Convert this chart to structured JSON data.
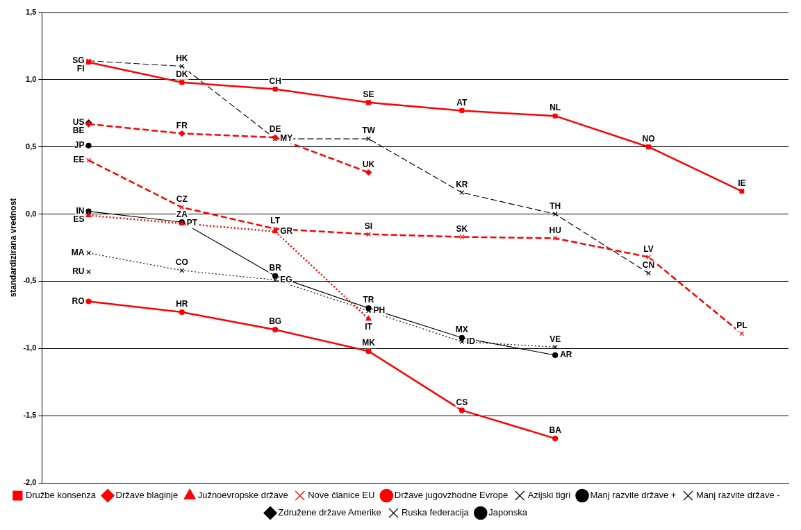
{
  "chart_data": {
    "type": "line",
    "categories": [
      null,
      null,
      null,
      null,
      null,
      null,
      null,
      null
    ],
    "ylabel": "standardizirana vrednost",
    "ylim": [
      -2,
      1.5
    ],
    "yticks": [
      {
        "value": -2,
        "label": "-2,0"
      },
      {
        "value": -1.5,
        "label": "-1,5"
      },
      {
        "value": -1,
        "label": "-1,0"
      },
      {
        "value": -0.5,
        "label": "-0,5"
      },
      {
        "value": 0,
        "label": "0,0"
      },
      {
        "value": 0.5,
        "label": "0,5"
      },
      {
        "value": 1,
        "label": "1,0"
      },
      {
        "value": 1.5,
        "label": "1,5"
      }
    ],
    "tick_labels": "y",
    "grid": "y",
    "legend": "bottom",
    "series": [
      {
        "name": "Družbe konsenza",
        "type": "line",
        "color": "#ff0000",
        "marker": "square",
        "line_style": "solid",
        "values": [
          1.13,
          0.98,
          0.93,
          0.83,
          0.77,
          0.73,
          0.5,
          0.17
        ],
        "value_labels": [
          "FI",
          "DK",
          "CH",
          "SE",
          "AT",
          "NL",
          "NO",
          "IE"
        ]
      },
      {
        "name": "Države blaginje",
        "type": "line",
        "color": "#ff0000",
        "marker": "diamond",
        "line_style": "dashed",
        "values": [
          0.67,
          0.6,
          0.57,
          0.31,
          null,
          null,
          null,
          null
        ],
        "value_labels": [
          "BE",
          "FR",
          "DE",
          "UK",
          null,
          null,
          null,
          null
        ]
      },
      {
        "name": "Južnoevropske države",
        "type": "line",
        "color": "#ff0000",
        "marker": "triangle",
        "line_style": "dotted",
        "values": [
          -0.01,
          -0.07,
          -0.13,
          -0.78,
          null,
          null,
          null,
          null
        ],
        "value_labels": [
          "ES",
          "PT",
          "GR",
          "IT",
          null,
          null,
          null,
          null
        ]
      },
      {
        "name": "Nove članice EU",
        "type": "line",
        "color": "#ff0000",
        "marker": "cross",
        "line_style": "dashed",
        "values": [
          0.4,
          0.05,
          -0.11,
          -0.15,
          -0.17,
          -0.18,
          -0.32,
          -0.89
        ],
        "value_labels": [
          "EE",
          "CZ",
          "LT",
          "SI",
          "SK",
          "HU",
          "LV",
          "PL"
        ]
      },
      {
        "name": "Države jugovzhodne Evrope",
        "type": "line",
        "color": "#ff0000",
        "marker": "circle",
        "line_style": "solid",
        "values": [
          -0.65,
          -0.73,
          -0.86,
          -1.02,
          -1.46,
          -1.67,
          null,
          null
        ],
        "value_labels": [
          "RO",
          "HR",
          "BG",
          "MK",
          "CS",
          "BA",
          null,
          null
        ]
      },
      {
        "name": "Azijski tigri",
        "type": "line",
        "color": "#000000",
        "marker": "cross",
        "line_style": "dashed",
        "values": [
          1.14,
          1.1,
          0.56,
          0.56,
          0.16,
          0.0,
          -0.44,
          null
        ],
        "value_labels": [
          "SG",
          "HK",
          "MY",
          "TW",
          "KR",
          "TH",
          "CN",
          null
        ]
      },
      {
        "name": "Manj razvite države +",
        "type": "line",
        "color": "#000000",
        "marker": "circle",
        "line_style": "solid",
        "values": [
          0.02,
          -0.06,
          -0.46,
          -0.7,
          -0.92,
          -1.05,
          null,
          null
        ],
        "value_labels": [
          "IN",
          "ZA",
          "BR",
          "TR",
          "MX",
          "AR",
          null,
          null
        ]
      },
      {
        "name": "Manj razvite države -",
        "type": "line",
        "color": "#000000",
        "marker": "cross",
        "line_style": "dotted",
        "values": [
          -0.29,
          -0.42,
          -0.49,
          -0.72,
          -0.95,
          -0.99,
          null,
          null
        ],
        "value_labels": [
          "MA",
          "CO",
          "EG",
          "PH",
          "ID",
          "VE",
          null,
          null
        ]
      },
      {
        "name": "Združene države Amerike",
        "type": "scatter",
        "color": "#000000",
        "marker": "diamond",
        "values": [
          0.68,
          null,
          null,
          null,
          null,
          null,
          null,
          null
        ],
        "value_labels": [
          "US",
          null,
          null,
          null,
          null,
          null,
          null,
          null
        ]
      },
      {
        "name": "Ruska federacija",
        "type": "scatter",
        "color": "#000000",
        "marker": "cross",
        "values": [
          -0.43,
          null,
          null,
          null,
          null,
          null,
          null,
          null
        ],
        "value_labels": [
          "RU",
          null,
          null,
          null,
          null,
          null,
          null,
          null
        ]
      },
      {
        "name": "Japonska",
        "type": "scatter",
        "color": "#000000",
        "marker": "circle",
        "values": [
          0.51,
          null,
          null,
          null,
          null,
          null,
          null,
          null
        ],
        "value_labels": [
          "JP",
          null,
          null,
          null,
          null,
          null,
          null,
          null
        ]
      }
    ]
  }
}
